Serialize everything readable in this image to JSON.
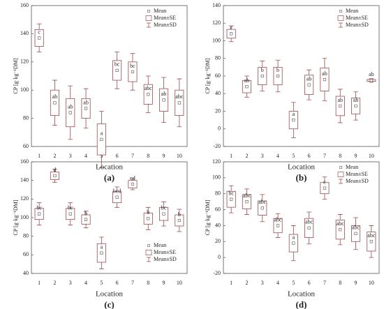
{
  "chart_data": [
    {
      "type": "box",
      "panel": "(a)",
      "xlabel": "Location",
      "ylabel": "CP [g·kg⁻¹DM]",
      "categories": [
        "1",
        "2",
        "3",
        "4",
        "5",
        "6",
        "7",
        "8",
        "9",
        "10"
      ],
      "values": [
        137,
        91,
        84,
        87,
        65,
        114,
        113,
        97,
        93,
        91
      ],
      "se": [
        6,
        9,
        10,
        7,
        11,
        7,
        7,
        7,
        8,
        9
      ],
      "sd": [
        10,
        16,
        19,
        14,
        20,
        13,
        13,
        13,
        16,
        17
      ],
      "letters": [
        "c",
        "ab",
        "ab",
        "ab",
        "a",
        "bc",
        "bc",
        "abc",
        "ab",
        "abc"
      ],
      "ylim": [
        60,
        160
      ],
      "yticks": [
        60,
        80,
        100,
        120,
        140,
        160
      ],
      "legend": "upper right",
      "legend_labels": [
        "Mean",
        "Mean±SE",
        "Mean±SD"
      ],
      "color": "#9b4a4a"
    },
    {
      "type": "box",
      "panel": "(b)",
      "xlabel": "Location",
      "ylabel": "CP [g·kg⁻¹DM]",
      "categories": [
        "1",
        "2",
        "3",
        "4",
        "5",
        "6",
        "7",
        "8",
        "9",
        "10"
      ],
      "values": [
        108,
        48,
        60,
        60,
        10,
        50,
        56,
        26,
        26,
        55
      ],
      "se": [
        5,
        7,
        10,
        10,
        10,
        11,
        13,
        11,
        9,
        1
      ],
      "sd": [
        9,
        12,
        17,
        18,
        20,
        17,
        24,
        19,
        16,
        2
      ],
      "letters": [
        "c",
        "ab",
        "b",
        "b",
        "a",
        "ab",
        "ab",
        "ab",
        "ab",
        "ab"
      ],
      "ylim": [
        -20,
        140
      ],
      "yticks": [
        -20,
        0,
        20,
        40,
        60,
        80,
        100,
        120,
        140
      ],
      "legend": "upper right",
      "legend_labels": [
        "Mean",
        "Mean±SE",
        "Mean±SD"
      ],
      "color": "#9b4a4a"
    },
    {
      "type": "box",
      "panel": "(c)",
      "xlabel": "Location",
      "ylabel": "CP [g·kg⁻¹DM]",
      "categories": [
        "1",
        "2",
        "3",
        "4",
        "5",
        "6",
        "7",
        "8",
        "9",
        "10"
      ],
      "values": [
        104,
        145,
        104,
        98,
        62,
        122,
        136,
        99,
        104,
        97
      ],
      "se": [
        6,
        4,
        6,
        5,
        10,
        6,
        4,
        6,
        7,
        6
      ],
      "sd": [
        12,
        7,
        12,
        9,
        17,
        11,
        6,
        12,
        13,
        12
      ],
      "letters": [
        "bc",
        "d",
        "bc",
        "b",
        "a",
        "bcd",
        "cd",
        "b",
        "bc",
        "b"
      ],
      "ylim": [
        40,
        160
      ],
      "yticks": [
        40,
        60,
        80,
        100,
        120,
        140,
        160
      ],
      "legend": "lower right",
      "legend_labels": [
        "Mean",
        "Mean±SE",
        "Mean±SD"
      ],
      "color": "#9b4a4a"
    },
    {
      "type": "box",
      "panel": "(d)",
      "xlabel": "Location",
      "ylabel": "CP [g·kg⁻¹DM]",
      "categories": [
        "1",
        "2",
        "3",
        "4",
        "5",
        "6",
        "7",
        "8",
        "9",
        "10"
      ],
      "values": [
        73,
        70,
        62,
        40,
        18,
        37,
        87,
        35,
        30,
        20
      ],
      "se": [
        10,
        9,
        9,
        9,
        11,
        12,
        7,
        12,
        10,
        12
      ],
      "sd": [
        17,
        16,
        17,
        15,
        22,
        20,
        14,
        19,
        20,
        20
      ],
      "letters": [
        "bc",
        "abc",
        "abc",
        "abc",
        "a",
        "abc",
        "c",
        "abc",
        "abc",
        "abc"
      ],
      "ylim": [
        -20,
        120
      ],
      "yticks": [
        -20,
        0,
        20,
        40,
        60,
        80,
        100,
        120
      ],
      "legend": "upper right",
      "legend_labels": [
        "Mean",
        "Mean±SE",
        "Mean±SD"
      ],
      "color": "#9b4a4a"
    }
  ]
}
